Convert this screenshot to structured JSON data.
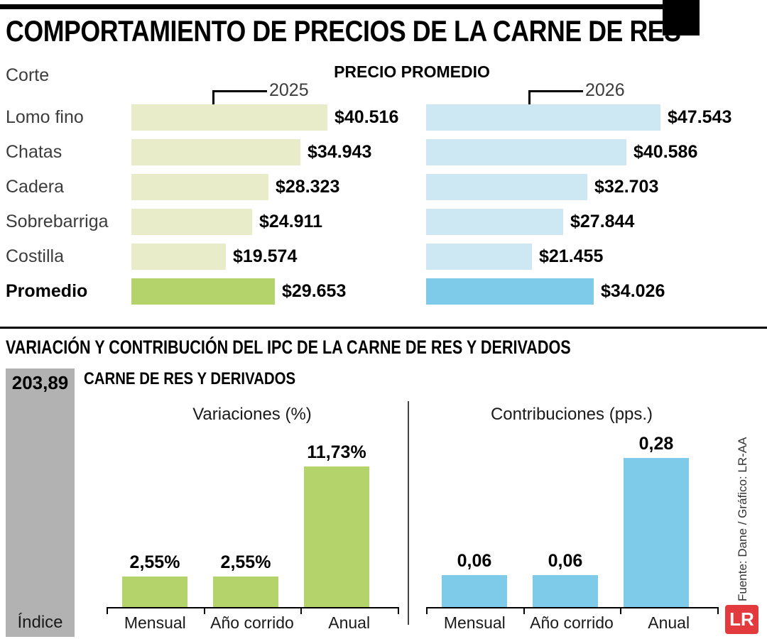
{
  "meta": {
    "title": "COMPORTAMIENTO DE PRECIOS DE LA CARNE DE RES",
    "source": "Fuente: Dane / Gráfico: LR-AA",
    "logo": "LR"
  },
  "colors": {
    "bar_2025_light": "#e8ecc8",
    "bar_2025_dark": "#b4d36b",
    "bar_2026_light": "#cde7f3",
    "bar_2026_dark": "#7ecbe9",
    "mini_green": "#b4d36b",
    "mini_blue": "#7ecbe9",
    "index_gray": "#b2b2b2",
    "logo_red": "#e23a3d",
    "callout_black": "#000000"
  },
  "price_section": {
    "col_header": "Corte",
    "header": "PRECIO PROMEDIO"
  },
  "ipc_section": {
    "title": "VARIACIÓN Y CONTRIBUCIÓN DEL IPC DE LA CARNE DE RES Y DERIVADOS",
    "subtitle": "CARNE DE RES Y DERIVADOS"
  },
  "chart_data": [
    {
      "type": "bar",
      "orientation": "horizontal",
      "title": "PRECIO PROMEDIO",
      "categories": [
        "Lomo fino",
        "Chatas",
        "Cadera",
        "Sobrebarriga",
        "Costilla",
        "Promedio"
      ],
      "series": [
        {
          "name": "2025",
          "values": [
            40516,
            34943,
            28323,
            24911,
            19574,
            29653
          ]
        },
        {
          "name": "2026",
          "values": [
            47543,
            40586,
            32703,
            27844,
            21455,
            34026
          ]
        }
      ],
      "value_labels": [
        [
          "$40.516",
          "$34.943",
          "$28.323",
          "$24.911",
          "$19.574",
          "$29.653"
        ],
        [
          "$47.543",
          "$40.586",
          "$32.703",
          "$27.844",
          "$21.455",
          "$34.026"
        ]
      ],
      "highlighted_category": "Promedio"
    },
    {
      "type": "bar",
      "title": "Variaciones (%)",
      "categories": [
        "Mensual",
        "Año corrido",
        "Anual"
      ],
      "values": [
        2.55,
        2.55,
        11.73
      ],
      "value_labels": [
        "2,55%",
        "2,55%",
        "11,73%"
      ],
      "ylim": [
        0,
        12
      ],
      "unit": "%"
    },
    {
      "type": "bar",
      "title": "Contribuciones (pps.)",
      "categories": [
        "Mensual",
        "Año corrido",
        "Anual"
      ],
      "values": [
        0.06,
        0.06,
        0.28
      ],
      "value_labels": [
        "0,06",
        "0,06",
        "0,28"
      ],
      "ylim": [
        0,
        0.3
      ],
      "unit": "pps"
    },
    {
      "type": "bar",
      "title": "Índice",
      "categories": [
        "Índice"
      ],
      "values": [
        203.89
      ],
      "value_labels": [
        "203,89"
      ]
    }
  ]
}
